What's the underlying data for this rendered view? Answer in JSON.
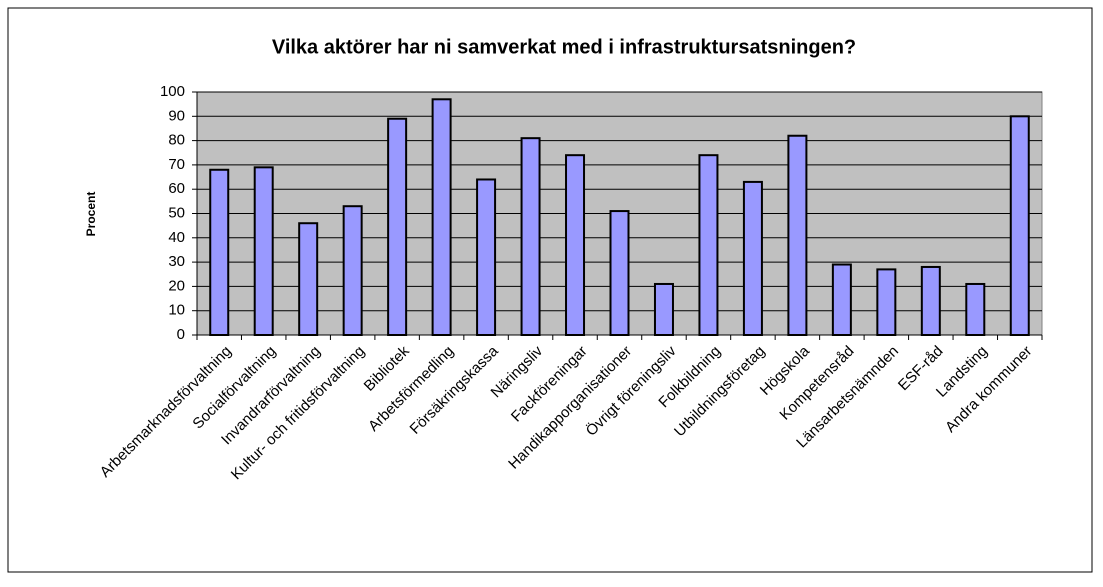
{
  "chart_data": {
    "type": "bar",
    "title": "Vilka aktörer har ni samverkat med i infrastruktursatsningen?",
    "y_label": "Procent",
    "categories": [
      "Arbetsmarknadsförvaltning",
      "Socialförvaltning",
      "Invandrarförvaltning",
      "Kultur- och fritidsförvaltning",
      "Bibliotek",
      "Arbetsförmedling",
      "Försäkringskassa",
      "Näringsliv",
      "Fackföreningar",
      "Handikapporganisationer",
      "Övrigt föreningsliv",
      "Folkbildning",
      "Utbildningsföretag",
      "Högskola",
      "Kompetensråd",
      "Länsarbetsnämnden",
      "ESF-råd",
      "Landsting",
      "Andra kommuner"
    ],
    "values": [
      68,
      69,
      46,
      53,
      89,
      97,
      64,
      81,
      74,
      51,
      21,
      74,
      63,
      82,
      29,
      27,
      28,
      21,
      90
    ],
    "color": "#9999ff",
    "ylim": [
      0,
      100
    ],
    "yticks": [
      0,
      10,
      20,
      30,
      40,
      50,
      60,
      70,
      80,
      90,
      100
    ],
    "grid": true
  }
}
